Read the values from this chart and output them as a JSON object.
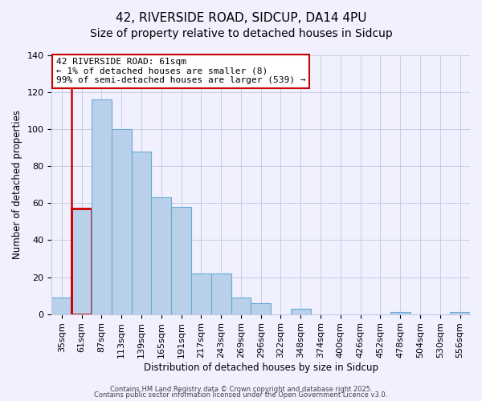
{
  "title": "42, RIVERSIDE ROAD, SIDCUP, DA14 4PU",
  "subtitle": "Size of property relative to detached houses in Sidcup",
  "xlabel": "Distribution of detached houses by size in Sidcup",
  "ylabel": "Number of detached properties",
  "bar_labels": [
    "35sqm",
    "61sqm",
    "87sqm",
    "113sqm",
    "139sqm",
    "165sqm",
    "191sqm",
    "217sqm",
    "243sqm",
    "269sqm",
    "296sqm",
    "322sqm",
    "348sqm",
    "374sqm",
    "400sqm",
    "426sqm",
    "452sqm",
    "478sqm",
    "504sqm",
    "530sqm",
    "556sqm"
  ],
  "bar_values": [
    9,
    57,
    116,
    100,
    88,
    63,
    58,
    22,
    22,
    9,
    6,
    0,
    3,
    0,
    0,
    0,
    0,
    1,
    0,
    0,
    1
  ],
  "bar_color": "#b8d0ea",
  "bar_edge_color": "#6aaad4",
  "highlight_bar_index": 1,
  "highlight_edge_color": "#cc0000",
  "ylim": [
    0,
    140
  ],
  "yticks": [
    0,
    20,
    40,
    60,
    80,
    100,
    120,
    140
  ],
  "annotation_text_line1": "42 RIVERSIDE ROAD: 61sqm",
  "annotation_text_line2": "← 1% of detached houses are smaller (8)",
  "annotation_text_line3": "99% of semi-detached houses are larger (539) →",
  "annotation_box_edge_color": "#cc0000",
  "annotation_box_facecolor": "#ffffff",
  "footnote1": "Contains HM Land Registry data © Crown copyright and database right 2025.",
  "footnote2": "Contains public sector information licensed under the Open Government Licence v3.0.",
  "bg_color": "#f0f0ff",
  "grid_color": "#c8cce0",
  "title_fontsize": 11,
  "subtitle_fontsize": 10,
  "axis_label_fontsize": 8.5,
  "tick_fontsize": 8,
  "annotation_fontsize": 8,
  "footnote_fontsize": 6
}
